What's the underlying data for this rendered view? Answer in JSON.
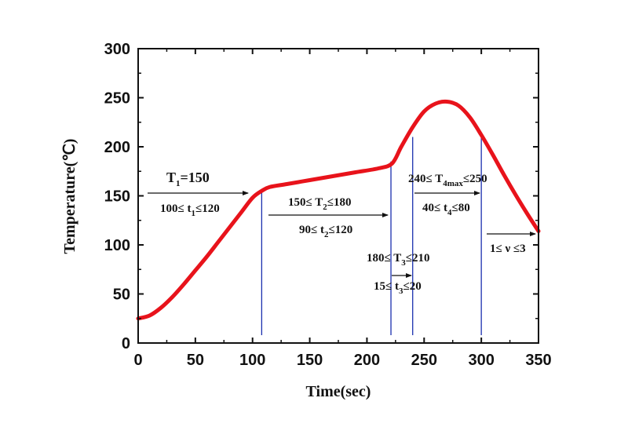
{
  "chart_data": {
    "type": "line",
    "title": "",
    "xlabel": "Time(sec)",
    "ylabel": "Temperature(℃)",
    "xlim": [
      0,
      350
    ],
    "ylim": [
      0,
      300
    ],
    "xticks": [
      "0",
      "50",
      "100",
      "150",
      "200",
      "250",
      "300",
      "350"
    ],
    "yticks": [
      "0",
      "50",
      "100",
      "150",
      "200",
      "250",
      "300"
    ],
    "grid": false,
    "legend": "none",
    "series": [
      {
        "color": "#e8131b",
        "x": [
          0,
          10,
          20,
          30,
          40,
          50,
          60,
          70,
          80,
          90,
          100,
          108,
          115,
          130,
          150,
          170,
          190,
          210,
          222,
          230,
          240,
          250,
          260,
          270,
          280,
          290,
          300,
          310,
          320,
          330,
          340,
          350
        ],
        "y": [
          25,
          28,
          36,
          47,
          60,
          74,
          88,
          103,
          118,
          133,
          148,
          155,
          159,
          162,
          166,
          170,
          174,
          178,
          183,
          200,
          220,
          236,
          244,
          246,
          242,
          230,
          212,
          192,
          171,
          151,
          132,
          114
        ]
      }
    ],
    "vlines": [
      108,
      221,
      240,
      300
    ],
    "vline_color": "#1a2fae",
    "annotations": [
      {
        "id": "a1",
        "main": "T",
        "sub": "1",
        "after": "=150"
      },
      {
        "id": "a2",
        "pre": "100≤ t",
        "sub": "1",
        "after": "≤120"
      },
      {
        "id": "a3",
        "pre": "150≤ T",
        "sub": "2",
        "after": "≤180"
      },
      {
        "id": "a4",
        "pre": "90≤ t",
        "sub": "2",
        "after": "≤120"
      },
      {
        "id": "a5",
        "pre": "180≤ T",
        "sub": "3",
        "after": "≤210"
      },
      {
        "id": "a6",
        "pre": "15≤ t",
        "sub": "3",
        "after": "≤20"
      },
      {
        "id": "a7",
        "pre": "240≤ T",
        "sub": "4max",
        "after": "≤250"
      },
      {
        "id": "a8",
        "pre": "40≤ t",
        "sub": "4",
        "after": "≤80"
      },
      {
        "id": "a9",
        "pre": "1≤ ν ≤3"
      }
    ]
  }
}
